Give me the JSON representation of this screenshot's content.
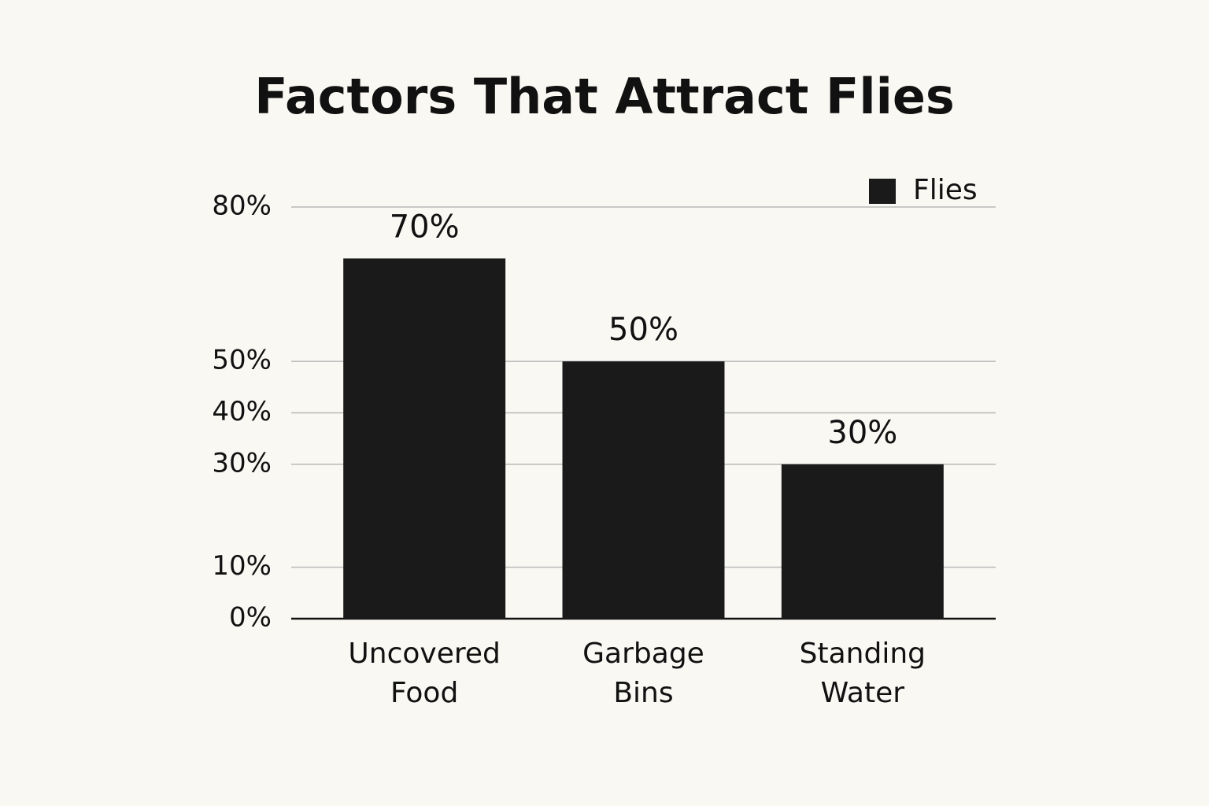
{
  "chart_data": {
    "type": "bar",
    "title": "Factors That Attract Flies",
    "categories": [
      "Uncovered Food",
      "Garbage Bins",
      "Standing Water"
    ],
    "series": [
      {
        "name": "Flies",
        "color": "#1a1a1a",
        "values": [
          70,
          50,
          30
        ],
        "value_labels": [
          "70%",
          "50%",
          "30%"
        ]
      }
    ],
    "ylim": [
      0,
      80
    ],
    "yticks": [
      {
        "value": 0,
        "label": "0%"
      },
      {
        "value": 10,
        "label": "10%"
      },
      {
        "value": 30,
        "label": "30%"
      },
      {
        "value": 40,
        "label": "40%"
      },
      {
        "value": 50,
        "label": "50%"
      },
      {
        "value": 80,
        "label": "80%"
      }
    ],
    "grid": true,
    "legend": "top-right"
  }
}
